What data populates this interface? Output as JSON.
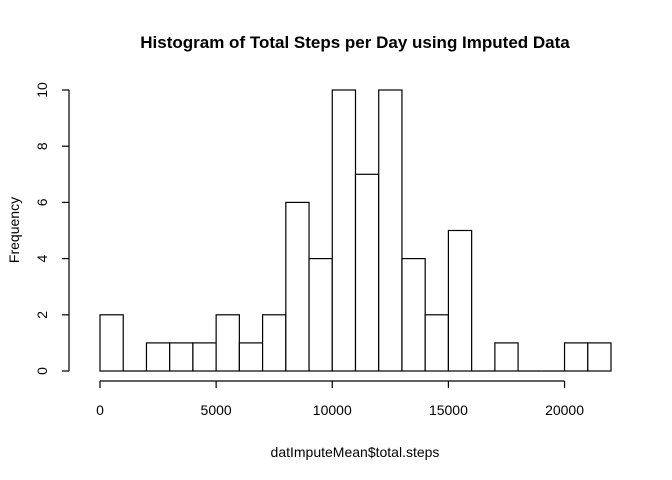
{
  "chart_data": {
    "type": "bar",
    "title": "Histogram of Total Steps per Day using Imputed Data",
    "xlabel": "datImputeMean$total.steps",
    "ylabel": "Frequency",
    "bins": [
      {
        "start": 0,
        "end": 1000,
        "count": 2
      },
      {
        "start": 1000,
        "end": 2000,
        "count": 0
      },
      {
        "start": 2000,
        "end": 3000,
        "count": 1
      },
      {
        "start": 3000,
        "end": 4000,
        "count": 1
      },
      {
        "start": 4000,
        "end": 5000,
        "count": 1
      },
      {
        "start": 5000,
        "end": 6000,
        "count": 2
      },
      {
        "start": 6000,
        "end": 7000,
        "count": 1
      },
      {
        "start": 7000,
        "end": 8000,
        "count": 2
      },
      {
        "start": 8000,
        "end": 9000,
        "count": 6
      },
      {
        "start": 9000,
        "end": 10000,
        "count": 4
      },
      {
        "start": 10000,
        "end": 11000,
        "count": 10
      },
      {
        "start": 11000,
        "end": 12000,
        "count": 7
      },
      {
        "start": 12000,
        "end": 13000,
        "count": 10
      },
      {
        "start": 13000,
        "end": 14000,
        "count": 4
      },
      {
        "start": 14000,
        "end": 15000,
        "count": 2
      },
      {
        "start": 15000,
        "end": 16000,
        "count": 5
      },
      {
        "start": 16000,
        "end": 17000,
        "count": 0
      },
      {
        "start": 17000,
        "end": 18000,
        "count": 1
      },
      {
        "start": 18000,
        "end": 19000,
        "count": 0
      },
      {
        "start": 19000,
        "end": 20000,
        "count": 0
      },
      {
        "start": 20000,
        "end": 21000,
        "count": 1
      },
      {
        "start": 21000,
        "end": 22000,
        "count": 1
      }
    ],
    "xlim": [
      0,
      22000
    ],
    "ylim": [
      0,
      10
    ],
    "xticks": [
      0,
      5000,
      10000,
      15000,
      20000
    ],
    "yticks": [
      0,
      2,
      4,
      6,
      8,
      10
    ],
    "grid": false,
    "colors": {
      "bar_fill": "#ffffff",
      "bar_stroke": "#000000"
    }
  }
}
